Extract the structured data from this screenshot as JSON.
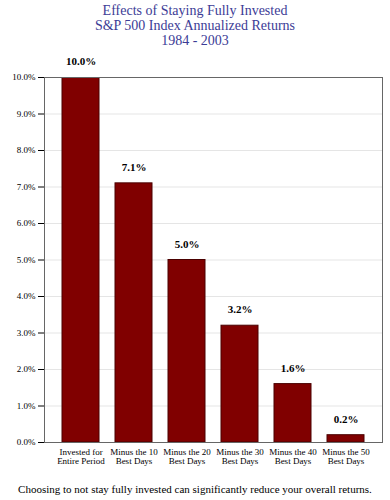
{
  "chart_data": {
    "type": "bar",
    "title": "Effects of Staying Fully Invested",
    "subtitle": [
      "S&P 500 Index Annualized Returns",
      "1984 - 2003"
    ],
    "caption": "Choosing to not stay fully invested can significantly reduce your overall returns.",
    "categories": [
      "Invested for\nEntire Period",
      "Minus the 10\nBest Days",
      "Minus the 20\nBest Days",
      "Minus the 30\nBest Days",
      "Minus the 40\nBest Days",
      "Minus the 50\nBest Days"
    ],
    "values": [
      10.0,
      7.1,
      5.0,
      3.2,
      1.6,
      0.2
    ],
    "value_labels": [
      "10.0%",
      "7.1%",
      "5.0%",
      "3.2%",
      "1.6%",
      "0.2%"
    ],
    "data_labels": true,
    "color": "#800000",
    "ylim": [
      0,
      10
    ],
    "yticks": [
      {
        "value": 0,
        "label": "0.0%"
      },
      {
        "value": 1,
        "label": "1.0%"
      },
      {
        "value": 2,
        "label": "2.0%"
      },
      {
        "value": 3,
        "label": "3.0%"
      },
      {
        "value": 4,
        "label": "4.0%"
      },
      {
        "value": 5,
        "label": "5.0%"
      },
      {
        "value": 6,
        "label": "6.0%"
      },
      {
        "value": 7,
        "label": "7.0%"
      },
      {
        "value": 8,
        "label": "8.0%"
      },
      {
        "value": 9,
        "label": "9.0%"
      },
      {
        "value": 10,
        "label": "10.0%"
      }
    ],
    "grid": true
  }
}
